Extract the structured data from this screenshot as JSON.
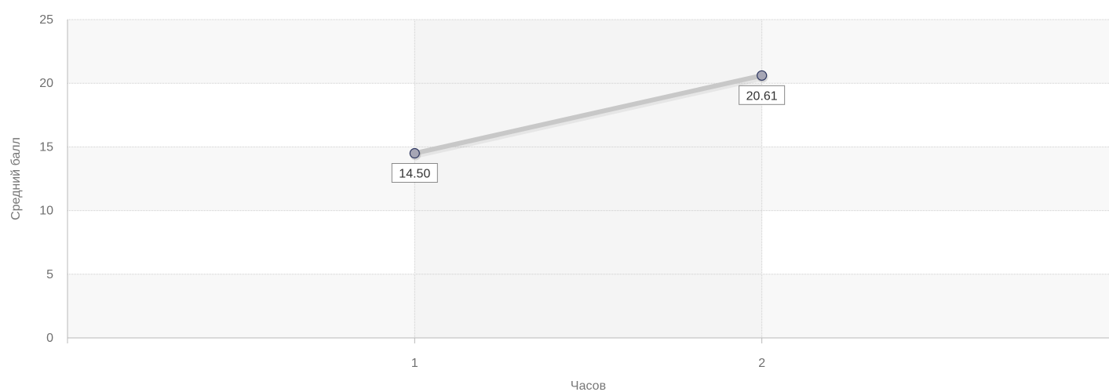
{
  "chart_data": {
    "type": "line",
    "xlabel": "Часов",
    "ylabel": "Средний балл",
    "categories": [
      "1",
      "2"
    ],
    "ylim": [
      0,
      25
    ],
    "yticks": [
      0,
      5,
      10,
      15,
      20,
      25
    ],
    "grid": true,
    "legend": "none",
    "series": [
      {
        "values": [
          14.5,
          20.61
        ],
        "labels": [
          "14.50",
          "20.61"
        ]
      }
    ],
    "colors": {
      "line": "#c8c8c8",
      "marker_fill": "#a6a6b5",
      "marker_stroke": "#2e3760",
      "band_alt": "#f8f8f8",
      "band_highlight": "#f3f3f3",
      "grid": "#cccccc"
    }
  }
}
